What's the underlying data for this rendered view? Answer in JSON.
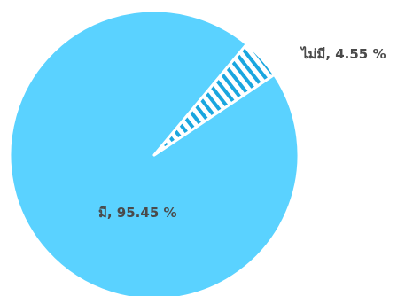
{
  "chart_data": {
    "type": "pie",
    "slices": [
      {
        "label": "มี",
        "value": 95.45,
        "display": "มี, 95.45 %",
        "color": "#5ad2ff",
        "pattern": "none"
      },
      {
        "label": "ไม่มี",
        "value": 4.55,
        "display": "ไม่มี, 4.55 %",
        "color": "#1aa6df",
        "pattern": "diagonal-stripes"
      }
    ]
  }
}
